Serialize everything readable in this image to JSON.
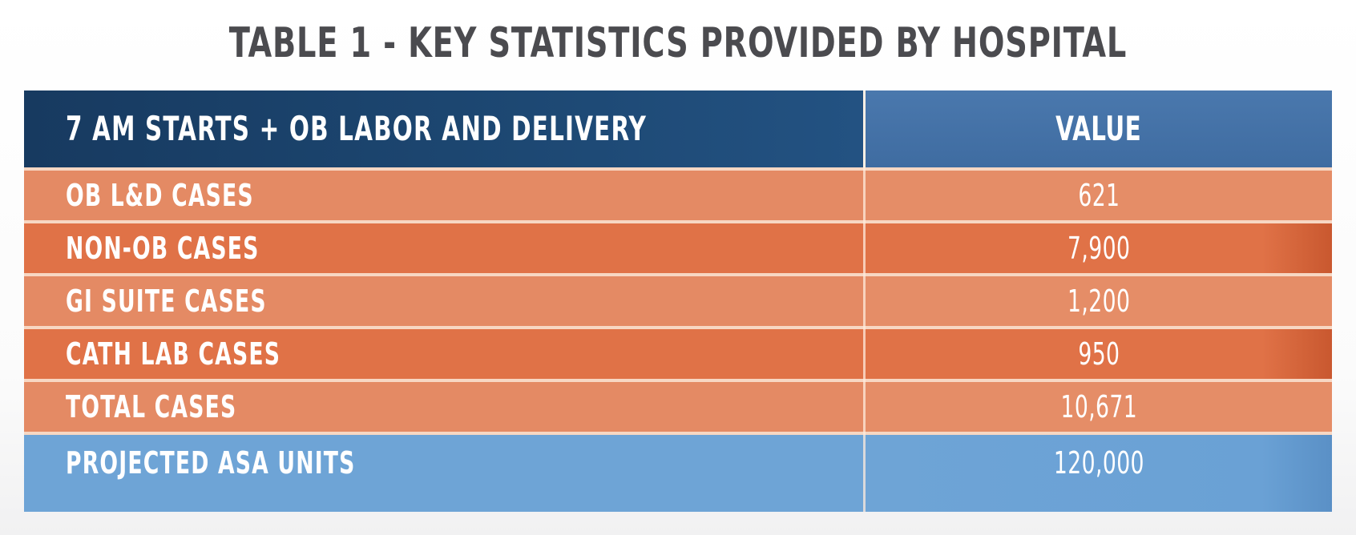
{
  "title": "TABLE 1 - KEY STATISTICS PROVIDED BY HOSPITAL",
  "table": {
    "header": {
      "label": "7 AM STARTS + OB LABOR AND DELIVERY",
      "value": "VALUE"
    },
    "rows": [
      {
        "label": "OB L&D CASES",
        "value": "621",
        "style": "light"
      },
      {
        "label": "NON-OB CASES",
        "value": "7,900",
        "style": "dark"
      },
      {
        "label": "GI SUITE CASES",
        "value": "1,200",
        "style": "light"
      },
      {
        "label": "CATH LAB CASES",
        "value": "950",
        "style": "dark"
      },
      {
        "label": "TOTAL CASES",
        "value": "10,671",
        "style": "light"
      },
      {
        "label": "PROJECTED ASA UNITS",
        "value": "120,000",
        "style": "blue"
      }
    ]
  },
  "colors": {
    "header_dark_blue": "#1d4873",
    "header_mid_blue": "#4474a8",
    "row_light_orange": "#e48a64",
    "row_dark_orange": "#e07247",
    "row_light_blue": "#6ea4d6",
    "title_gray": "#4b4b4f"
  }
}
